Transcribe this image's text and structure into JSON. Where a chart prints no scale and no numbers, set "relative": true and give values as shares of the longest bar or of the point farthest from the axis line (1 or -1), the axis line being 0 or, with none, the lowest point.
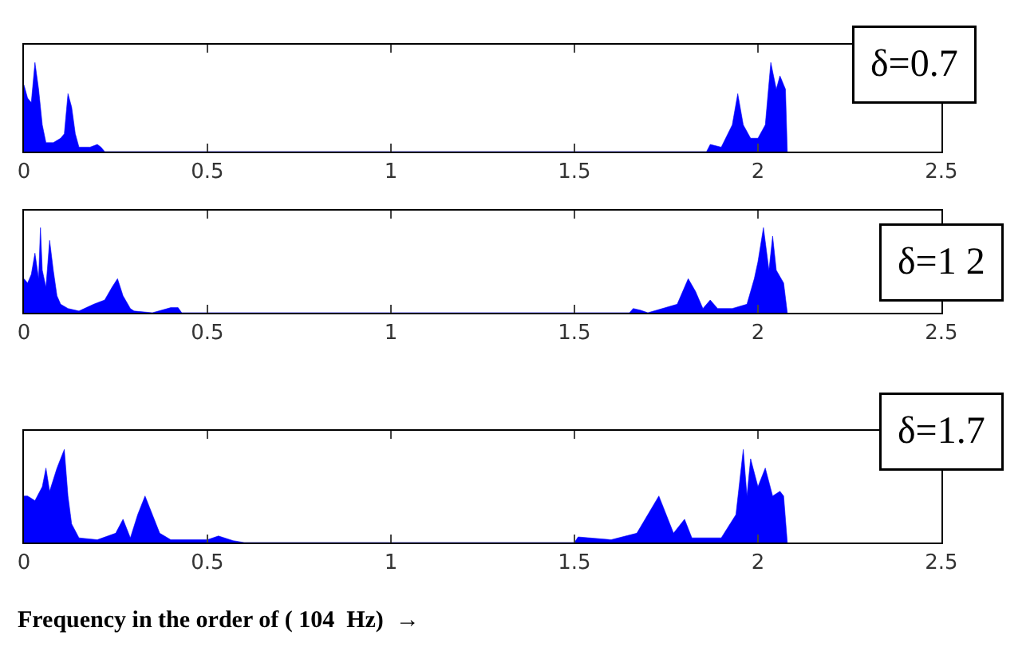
{
  "chart_data": [
    {
      "type": "area",
      "relative": true,
      "color": "#0000ff",
      "xlim": [
        0,
        2.5
      ],
      "xticks": [
        0,
        0.5,
        1,
        1.5,
        2,
        2.5
      ],
      "tick_labels": "x",
      "annotations": [
        "δ=0.7"
      ],
      "x": [
        0,
        0.01,
        0.02,
        0.03,
        0.04,
        0.05,
        0.06,
        0.08,
        0.1,
        0.11,
        0.12,
        0.13,
        0.14,
        0.15,
        0.18,
        0.2,
        0.21,
        0.22,
        1.86,
        1.87,
        1.9,
        1.93,
        1.945,
        1.96,
        1.98,
        2.0,
        2.02,
        2.035,
        2.05,
        2.06,
        2.07,
        2.075,
        2.08
      ],
      "values": [
        0.75,
        0.6,
        0.55,
        1.0,
        0.7,
        0.3,
        0.1,
        0.1,
        0.15,
        0.2,
        0.65,
        0.5,
        0.2,
        0.05,
        0.05,
        0.08,
        0.05,
        0,
        0,
        0.08,
        0.05,
        0.3,
        0.65,
        0.3,
        0.15,
        0.15,
        0.3,
        1.0,
        0.7,
        0.85,
        0.75,
        0.7,
        0
      ]
    },
    {
      "type": "area",
      "relative": true,
      "color": "#0000ff",
      "xlim": [
        0,
        2.5
      ],
      "xticks": [
        0,
        0.5,
        1,
        1.5,
        2,
        2.5
      ],
      "tick_labels": "x",
      "annotations": [
        "δ=1 2"
      ],
      "x": [
        0,
        0.01,
        0.02,
        0.03,
        0.04,
        0.045,
        0.05,
        0.06,
        0.07,
        0.08,
        0.09,
        0.1,
        0.12,
        0.15,
        0.19,
        0.22,
        0.24,
        0.255,
        0.27,
        0.29,
        0.3,
        0.35,
        0.4,
        0.42,
        0.43,
        1.65,
        1.66,
        1.68,
        1.7,
        1.78,
        1.81,
        1.83,
        1.85,
        1.87,
        1.89,
        1.93,
        1.97,
        1.99,
        2.0,
        2.015,
        2.03,
        2.04,
        2.05,
        2.07,
        2.08
      ],
      "values": [
        0.4,
        0.35,
        0.45,
        0.7,
        0.4,
        1.0,
        0.5,
        0.3,
        0.85,
        0.5,
        0.2,
        0.1,
        0.05,
        0.02,
        0.1,
        0.15,
        0.3,
        0.4,
        0.2,
        0.05,
        0.02,
        0,
        0.06,
        0.06,
        0,
        0,
        0.05,
        0.03,
        0,
        0.1,
        0.4,
        0.25,
        0.05,
        0.15,
        0.05,
        0.05,
        0.1,
        0.4,
        0.6,
        1.0,
        0.5,
        0.9,
        0.5,
        0.35,
        0
      ]
    },
    {
      "type": "area",
      "relative": true,
      "color": "#0000ff",
      "xlim": [
        0,
        2.5
      ],
      "xticks": [
        0,
        0.5,
        1,
        1.5,
        2,
        2.5
      ],
      "tick_labels": "x",
      "annotations": [
        "δ=1.7"
      ],
      "xlabel": "Frequency in the order of ( 104  Hz)  →",
      "x": [
        0,
        0.01,
        0.03,
        0.05,
        0.06,
        0.07,
        0.09,
        0.11,
        0.12,
        0.13,
        0.15,
        0.2,
        0.25,
        0.27,
        0.29,
        0.31,
        0.33,
        0.35,
        0.37,
        0.4,
        0.5,
        0.53,
        0.57,
        0.6,
        1.5,
        1.51,
        1.6,
        1.67,
        1.7,
        1.73,
        1.75,
        1.77,
        1.8,
        1.82,
        1.9,
        1.94,
        1.96,
        1.97,
        1.98,
        2.0,
        2.02,
        2.04,
        2.06,
        2.07,
        2.08
      ],
      "values": [
        0.5,
        0.5,
        0.45,
        0.6,
        0.8,
        0.55,
        0.8,
        1.0,
        0.5,
        0.2,
        0.05,
        0.03,
        0.1,
        0.25,
        0.05,
        0.3,
        0.5,
        0.3,
        0.1,
        0.03,
        0.03,
        0.07,
        0.02,
        0,
        0,
        0.06,
        0.03,
        0.1,
        0.3,
        0.5,
        0.3,
        0.1,
        0.25,
        0.05,
        0.05,
        0.3,
        1.0,
        0.5,
        0.9,
        0.6,
        0.8,
        0.5,
        0.55,
        0.5,
        0
      ]
    }
  ]
}
